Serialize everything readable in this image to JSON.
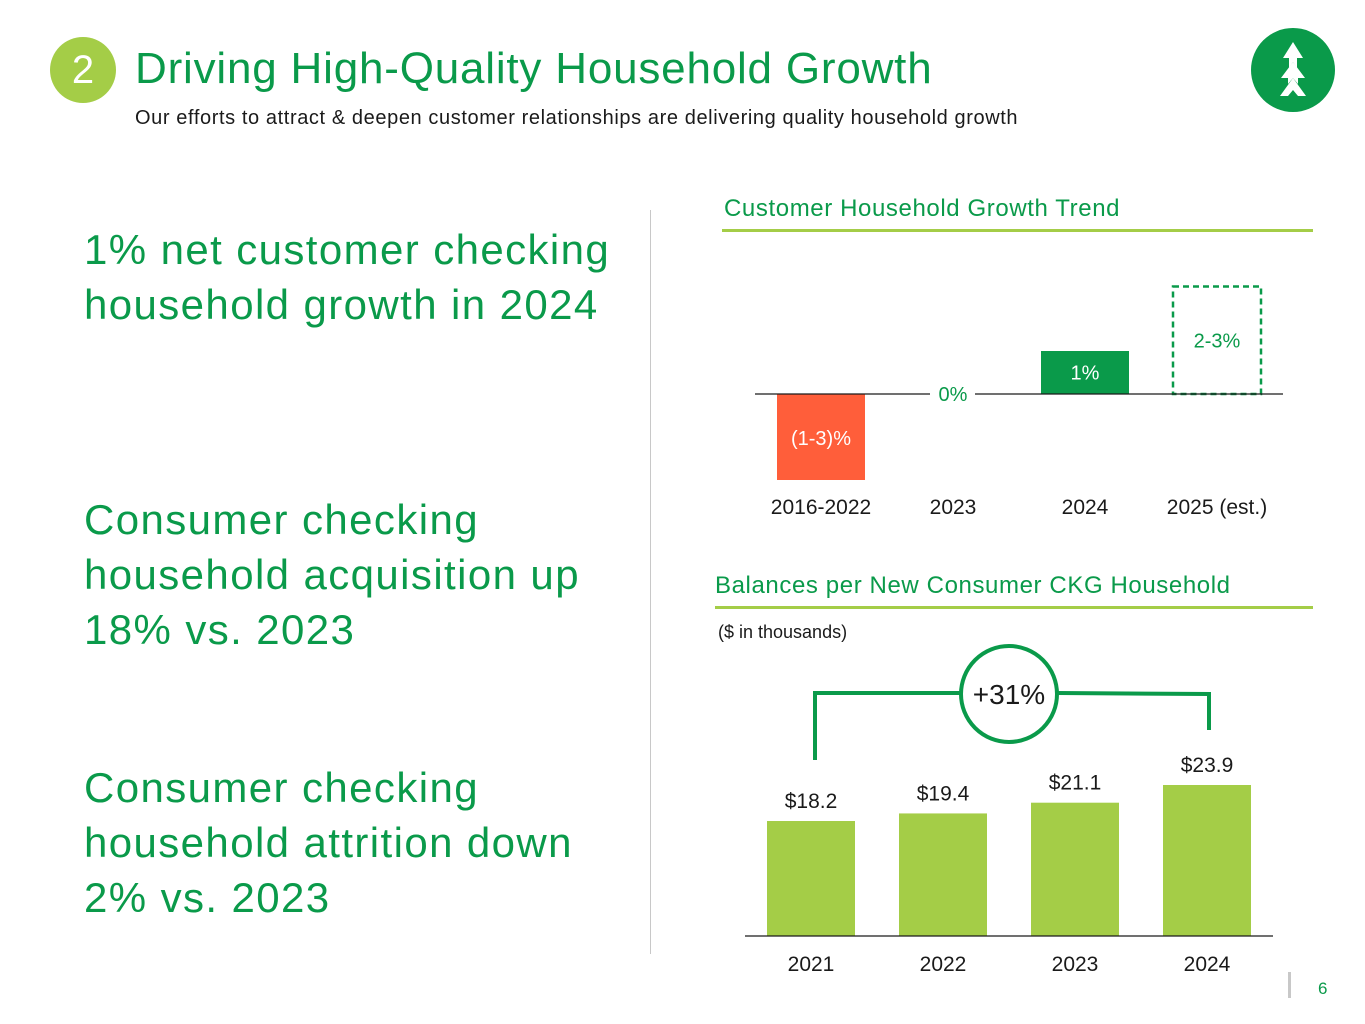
{
  "header": {
    "section_number": "2",
    "title": "Driving High-Quality Household Growth",
    "subtitle": "Our efforts to attract & deepen customer relationships are delivering quality household growth"
  },
  "logo": {
    "icon": "tree-icon"
  },
  "highlights": [
    {
      "text": "1% net customer checking household growth in 2024"
    },
    {
      "text": "Consumer checking household acquisition up 18% vs. 2023"
    },
    {
      "text": "Consumer checking household attrition down 2% vs. 2023"
    }
  ],
  "colors": {
    "brand_green": "#0a9a4a",
    "light_green": "#a4cd47",
    "negative": "#ff5e3a",
    "text": "#1a1a1a"
  },
  "chart_data": [
    {
      "type": "bar",
      "title": "Customer Household Growth Trend",
      "categories": [
        "2016-2022",
        "2023",
        "2024",
        "2025 (est.)"
      ],
      "values": [
        -2,
        0,
        1,
        2.5
      ],
      "labels": [
        "(1-3)%",
        "0%",
        "1%",
        "2-3%"
      ],
      "styles": [
        "negative",
        "zero",
        "positive",
        "estimate"
      ],
      "ylim": [
        -2,
        2.5
      ],
      "xlabel": "",
      "ylabel": ""
    },
    {
      "type": "bar",
      "title": "Balances per New Consumer CKG Household",
      "units_note": "($ in thousands)",
      "categories": [
        "2021",
        "2022",
        "2023",
        "2024"
      ],
      "values": [
        18.2,
        19.4,
        21.1,
        23.9
      ],
      "labels": [
        "$18.2",
        "$19.4",
        "$21.1",
        "$23.9"
      ],
      "ylim": [
        0,
        23.9
      ],
      "callout": "+31%",
      "xlabel": "",
      "ylabel": ""
    }
  ],
  "footer": {
    "page_number": "6"
  }
}
